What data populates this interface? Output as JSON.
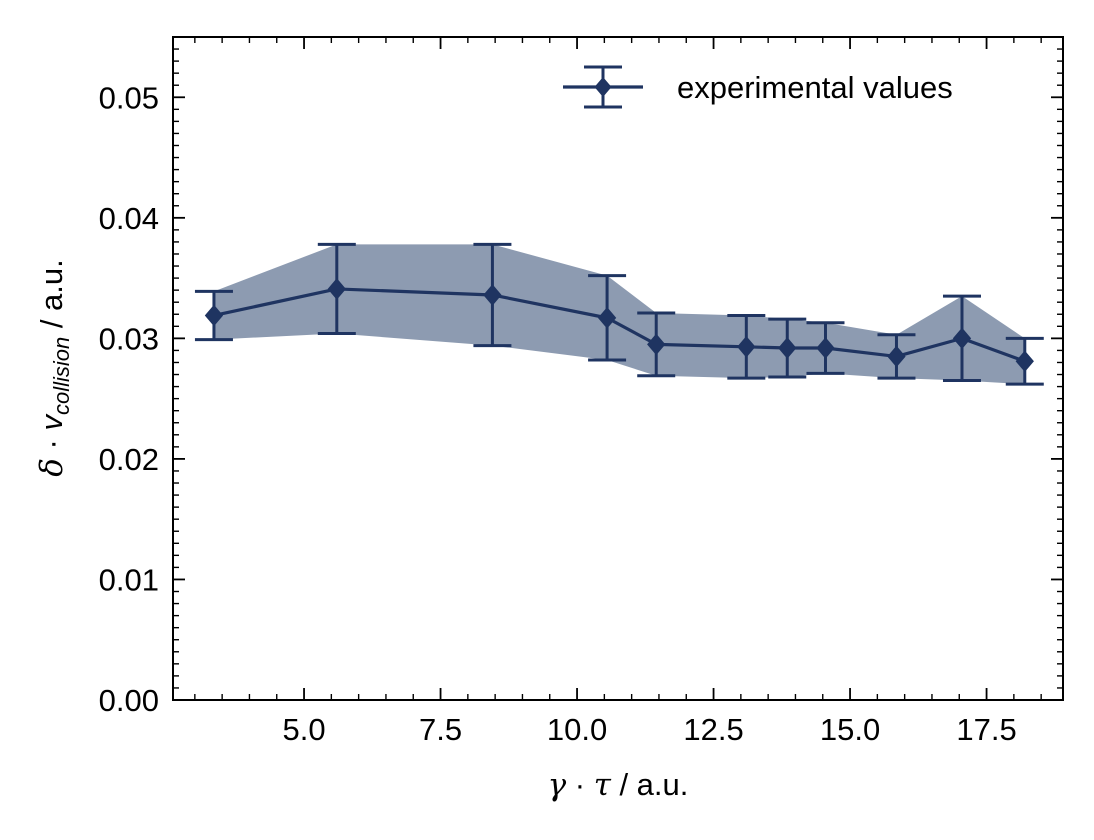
{
  "chart_data": {
    "type": "line",
    "title": "",
    "xlabel": {
      "symbol1": "γ",
      "dot": " · ",
      "symbol2": "τ",
      "unit": " / a.u."
    },
    "ylabel": {
      "symbol1": "δ",
      "dot": " · ",
      "symbol2": "v",
      "subscript": "collision",
      "unit": " / a.u."
    },
    "xlim": [
      2.6,
      18.9
    ],
    "ylim": [
      0.0,
      0.055
    ],
    "x_ticks": [
      5.0,
      7.5,
      10.0,
      12.5,
      15.0,
      17.5
    ],
    "x_tick_labels": [
      "5.0",
      "7.5",
      "10.0",
      "12.5",
      "15.0",
      "17.5"
    ],
    "y_ticks": [
      0.0,
      0.01,
      0.02,
      0.03,
      0.04,
      0.05
    ],
    "y_tick_labels": [
      "0.00",
      "0.01",
      "0.02",
      "0.03",
      "0.04",
      "0.05"
    ],
    "grid": false,
    "legend_position": "top-right",
    "colors": {
      "series": "#1f3461",
      "fill": "#8d9bb1"
    },
    "series": [
      {
        "name": "experimental values",
        "x": [
          3.35,
          5.6,
          8.45,
          10.55,
          11.45,
          13.1,
          13.85,
          14.55,
          15.85,
          17.05,
          18.2
        ],
        "y": [
          0.0319,
          0.0341,
          0.0336,
          0.0317,
          0.0295,
          0.0293,
          0.0292,
          0.0292,
          0.0285,
          0.03,
          0.0281
        ],
        "y_err": [
          0.002,
          0.0037,
          0.0042,
          0.0035,
          0.0026,
          0.0026,
          0.0024,
          0.0021,
          0.0018,
          0.0035,
          0.0019
        ]
      }
    ]
  }
}
